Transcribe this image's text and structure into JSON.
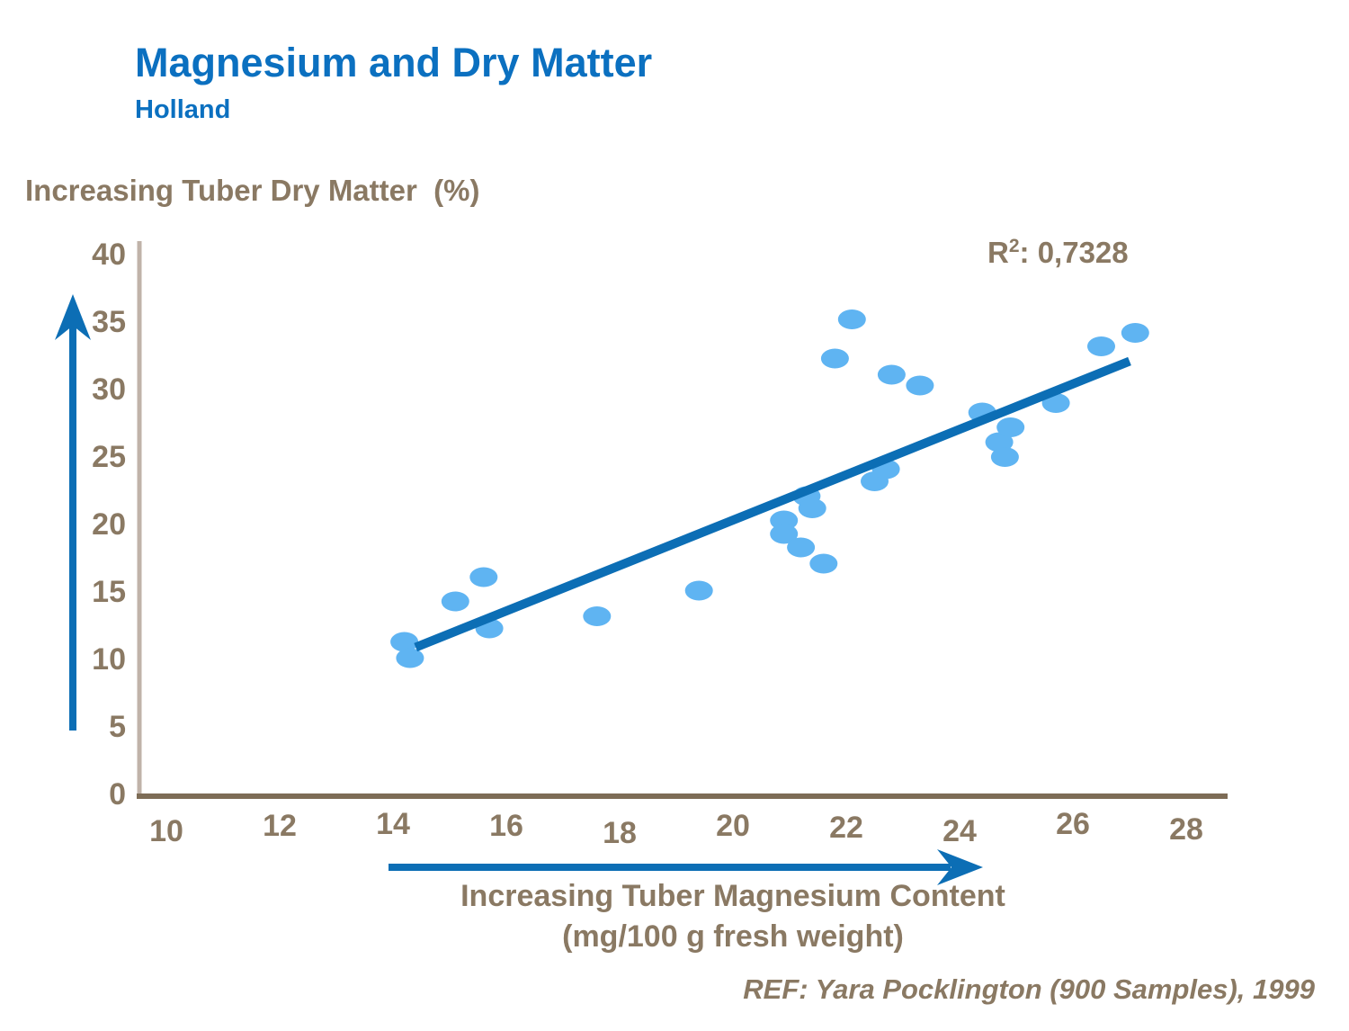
{
  "header": {
    "title": "Magnesium and Dry Matter",
    "subtitle": "Holland"
  },
  "chart_data": {
    "type": "scatter",
    "title": "Magnesium and Dry Matter",
    "subtitle": "Holland",
    "y_axis_title": "Increasing Tuber Dry Matter  (%)",
    "x_axis_title_line1": "Increasing Tuber Magnesium Content",
    "x_axis_title_line2": "(mg/100 g fresh weight)",
    "r_squared": {
      "base": "R",
      "exponent": "2",
      "value": ": 0,7328"
    },
    "x_ticks": [
      10,
      12,
      14,
      16,
      18,
      20,
      22,
      24,
      26,
      28
    ],
    "y_ticks": [
      0,
      5,
      10,
      15,
      20,
      25,
      30,
      35,
      40
    ],
    "xlim": [
      10,
      28.7
    ],
    "ylim": [
      0,
      40
    ],
    "grid": false,
    "legend": "none",
    "points": [
      [
        14.2,
        11.3
      ],
      [
        14.3,
        10.1
      ],
      [
        15.1,
        14.3
      ],
      [
        15.6,
        16.1
      ],
      [
        15.7,
        12.3
      ],
      [
        17.6,
        13.2
      ],
      [
        19.4,
        15.1
      ],
      [
        20.9,
        20.3
      ],
      [
        20.9,
        19.3
      ],
      [
        21.2,
        18.3
      ],
      [
        21.3,
        22.1
      ],
      [
        21.4,
        21.2
      ],
      [
        21.6,
        17.1
      ],
      [
        21.8,
        32.3
      ],
      [
        22.1,
        35.2
      ],
      [
        22.5,
        23.2
      ],
      [
        22.7,
        24.1
      ],
      [
        22.8,
        31.1
      ],
      [
        23.3,
        30.3
      ],
      [
        24.4,
        28.3
      ],
      [
        24.7,
        26.1
      ],
      [
        24.8,
        25.0
      ],
      [
        24.9,
        27.2
      ],
      [
        25.7,
        29.0
      ],
      [
        26.5,
        33.2
      ],
      [
        27.1,
        34.2
      ]
    ],
    "trendline": {
      "x1": 14.4,
      "y1": 10.9,
      "x2": 27.0,
      "y2": 32.1
    },
    "colors": {
      "title": "#0B70C0",
      "point": "#5FB4F2",
      "trend": "#0C6EB5",
      "arrow": "#0C6EB5",
      "axis_text": "#8A7963",
      "x_axis_line": "#7D6C56",
      "y_axis_line": "#C0B3A9"
    }
  },
  "footer": {
    "reference": "REF: Yara Pocklington (900 Samples), 1999"
  }
}
